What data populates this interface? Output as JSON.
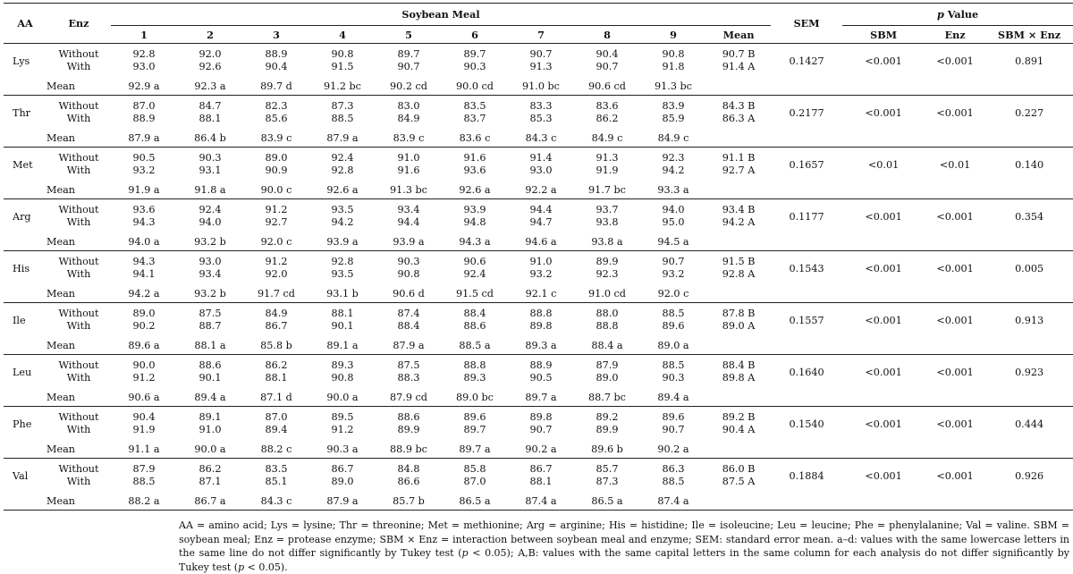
{
  "headers": {
    "aa": "AA",
    "enz": "Enz",
    "soybean_meal": "Soybean Meal",
    "sem": "SEM",
    "p_value": "p Value",
    "sbm": "SBM",
    "enz_col": "Enz",
    "interaction": "SBM × Enz",
    "levels": [
      "1",
      "2",
      "3",
      "4",
      "5",
      "6",
      "7",
      "8",
      "9"
    ],
    "mean": "Mean"
  },
  "enz_labels": [
    "Without",
    "With"
  ],
  "mean_label": "Mean",
  "rows": [
    {
      "aa": "Lys",
      "without": [
        "92.8",
        "92.0",
        "88.9",
        "90.8",
        "89.7",
        "89.7",
        "90.7",
        "90.4",
        "90.8",
        "90.7 B"
      ],
      "with": [
        "93.0",
        "92.6",
        "90.4",
        "91.5",
        "90.7",
        "90.3",
        "91.3",
        "90.7",
        "91.8",
        "91.4 A"
      ],
      "sem": "0.1427",
      "p_sbm": "<0.001",
      "p_enz": "<0.001",
      "p_int": "0.891",
      "means": [
        "92.9 a",
        "92.3 a",
        "89.7 d",
        "91.2 bc",
        "90.2 cd",
        "90.0 cd",
        "91.0 bc",
        "90.6 cd",
        "91.3 bc"
      ]
    },
    {
      "aa": "Thr",
      "without": [
        "87.0",
        "84.7",
        "82.3",
        "87.3",
        "83.0",
        "83.5",
        "83.3",
        "83.6",
        "83.9",
        "84.3 B"
      ],
      "with": [
        "88.9",
        "88.1",
        "85.6",
        "88.5",
        "84.9",
        "83.7",
        "85.3",
        "86.2",
        "85.9",
        "86.3 A"
      ],
      "sem": "0.2177",
      "p_sbm": "<0.001",
      "p_enz": "<0.001",
      "p_int": "0.227",
      "means": [
        "87.9 a",
        "86.4 b",
        "83.9 c",
        "87.9 a",
        "83.9 c",
        "83.6 c",
        "84.3 c",
        "84.9 c",
        "84.9 c"
      ]
    },
    {
      "aa": "Met",
      "without": [
        "90.5",
        "90.3",
        "89.0",
        "92.4",
        "91.0",
        "91.6",
        "91.4",
        "91.3",
        "92.3",
        "91.1 B"
      ],
      "with": [
        "93.2",
        "93.1",
        "90.9",
        "92.8",
        "91.6",
        "93.6",
        "93.0",
        "91.9",
        "94.2",
        "92.7 A"
      ],
      "sem": "0.1657",
      "p_sbm": "<0.01",
      "p_enz": "<0.01",
      "p_int": "0.140",
      "means": [
        "91.9 a",
        "91.8 a",
        "90.0 c",
        "92.6 a",
        "91.3 bc",
        "92.6 a",
        "92.2 a",
        "91.7 bc",
        "93.3 a"
      ]
    },
    {
      "aa": "Arg",
      "without": [
        "93.6",
        "92.4",
        "91.2",
        "93.5",
        "93.4",
        "93.9",
        "94.4",
        "93.7",
        "94.0",
        "93.4 B"
      ],
      "with": [
        "94.3",
        "94.0",
        "92.7",
        "94.2",
        "94.4",
        "94.8",
        "94.7",
        "93.8",
        "95.0",
        "94.2 A"
      ],
      "sem": "0.1177",
      "p_sbm": "<0.001",
      "p_enz": "<0.001",
      "p_int": "0.354",
      "means": [
        "94.0 a",
        "93.2 b",
        "92.0 c",
        "93.9 a",
        "93.9 a",
        "94.3 a",
        "94.6 a",
        "93.8 a",
        "94.5 a"
      ]
    },
    {
      "aa": "His",
      "without": [
        "94.3",
        "93.0",
        "91.2",
        "92.8",
        "90.3",
        "90.6",
        "91.0",
        "89.9",
        "90.7",
        "91.5 B"
      ],
      "with": [
        "94.1",
        "93.4",
        "92.0",
        "93.5",
        "90.8",
        "92.4",
        "93.2",
        "92.3",
        "93.2",
        "92.8 A"
      ],
      "sem": "0.1543",
      "p_sbm": "<0.001",
      "p_enz": "<0.001",
      "p_int": "0.005",
      "means": [
        "94.2 a",
        "93.2 b",
        "91.7 cd",
        "93.1 b",
        "90.6 d",
        "91.5 cd",
        "92.1 c",
        "91.0 cd",
        "92.0 c"
      ]
    },
    {
      "aa": "Ile",
      "without": [
        "89.0",
        "87.5",
        "84.9",
        "88.1",
        "87.4",
        "88.4",
        "88.8",
        "88.0",
        "88.5",
        "87.8 B"
      ],
      "with": [
        "90.2",
        "88.7",
        "86.7",
        "90.1",
        "88.4",
        "88.6",
        "89.8",
        "88.8",
        "89.6",
        "89.0 A"
      ],
      "sem": "0.1557",
      "p_sbm": "<0.001",
      "p_enz": "<0.001",
      "p_int": "0.913",
      "means": [
        "89.6 a",
        "88.1 a",
        "85.8 b",
        "89.1 a",
        "87.9 a",
        "88.5 a",
        "89.3 a",
        "88.4 a",
        "89.0 a"
      ]
    },
    {
      "aa": "Leu",
      "without": [
        "90.0",
        "88.6",
        "86.2",
        "89.3",
        "87.5",
        "88.8",
        "88.9",
        "87.9",
        "88.5",
        "88.4 B"
      ],
      "with": [
        "91.2",
        "90.1",
        "88.1",
        "90.8",
        "88.3",
        "89.3",
        "90.5",
        "89.0",
        "90.3",
        "89.8 A"
      ],
      "sem": "0.1640",
      "p_sbm": "<0.001",
      "p_enz": "<0.001",
      "p_int": "0.923",
      "means": [
        "90.6 a",
        "89.4 a",
        "87.1 d",
        "90.0 a",
        "87.9 cd",
        "89.0 bc",
        "89.7 a",
        "88.7 bc",
        "89.4 a"
      ]
    },
    {
      "aa": "Phe",
      "without": [
        "90.4",
        "89.1",
        "87.0",
        "89.5",
        "88.6",
        "89.6",
        "89.8",
        "89.2",
        "89.6",
        "89.2 B"
      ],
      "with": [
        "91.9",
        "91.0",
        "89.4",
        "91.2",
        "89.9",
        "89.7",
        "90.7",
        "89.9",
        "90.7",
        "90.4 A"
      ],
      "sem": "0.1540",
      "p_sbm": "<0.001",
      "p_enz": "<0.001",
      "p_int": "0.444",
      "means": [
        "91.1 a",
        "90.0 a",
        "88.2 c",
        "90.3 a",
        "88.9 bc",
        "89.7 a",
        "90.2 a",
        "89.6 b",
        "90.2 a"
      ]
    },
    {
      "aa": "Val",
      "without": [
        "87.9",
        "86.2",
        "83.5",
        "86.7",
        "84.8",
        "85.8",
        "86.7",
        "85.7",
        "86.3",
        "86.0 B"
      ],
      "with": [
        "88.5",
        "87.1",
        "85.1",
        "89.0",
        "86.6",
        "87.0",
        "88.1",
        "87.3",
        "88.5",
        "87.5 A"
      ],
      "sem": "0.1884",
      "p_sbm": "<0.001",
      "p_enz": "<0.001",
      "p_int": "0.926",
      "means": [
        "88.2 a",
        "86.7 a",
        "84.3 c",
        "87.9 a",
        "85.7 b",
        "86.5 a",
        "87.4 a",
        "86.5 a",
        "87.4 a"
      ]
    }
  ],
  "footnote": "AA = amino acid; Lys = lysine; Thr = threonine; Met = methionine; Arg = arginine; His = histidine; Ile = isoleucine; Leu = leucine; Phe = phenylalanine; Val = valine. SBM = soybean meal; Enz = protease enzyme; SBM × Enz = interaction between soybean meal and enzyme; SEM: standard error mean. a–d: values with the same lowercase letters in the same line do not differ significantly by Tukey test (p < 0.05); A,B: values with the same capital letters in the same column for each analysis do not differ significantly by Tukey test (p < 0.05)."
}
